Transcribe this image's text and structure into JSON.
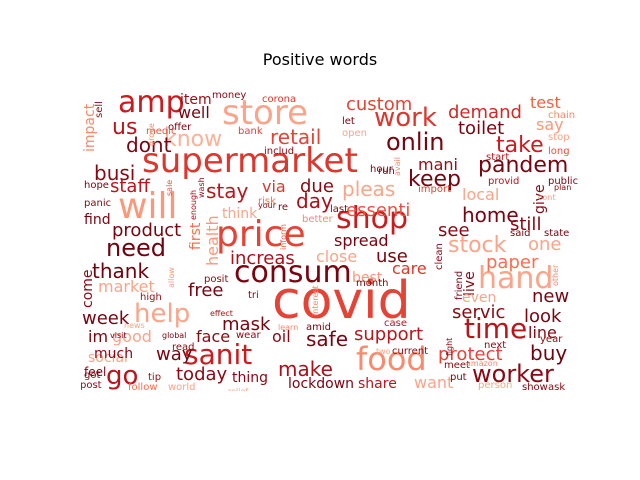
{
  "chart_data": {
    "type": "wordcloud",
    "title": "Positive words",
    "colormap": "Reds",
    "background": "#ffffff",
    "words": [
      {
        "text": "covid",
        "weight": 1.0
      },
      {
        "text": "supermarket",
        "weight": 0.85
      },
      {
        "text": "price",
        "weight": 0.8
      },
      {
        "text": "consum",
        "weight": 0.75
      },
      {
        "text": "store",
        "weight": 0.7
      },
      {
        "text": "shop",
        "weight": 0.68
      },
      {
        "text": "food",
        "weight": 0.66
      },
      {
        "text": "will",
        "weight": 0.62
      },
      {
        "text": "amp",
        "weight": 0.6
      },
      {
        "text": "sanit",
        "weight": 0.55
      },
      {
        "text": "help",
        "weight": 0.55
      },
      {
        "text": "hand",
        "weight": 0.55
      },
      {
        "text": "time",
        "weight": 0.5
      },
      {
        "text": "worker",
        "weight": 0.48
      },
      {
        "text": "work",
        "weight": 0.48
      },
      {
        "text": "onlin",
        "weight": 0.46
      },
      {
        "text": "need",
        "weight": 0.44
      },
      {
        "text": "know",
        "weight": 0.42
      },
      {
        "text": "pandem",
        "weight": 0.42
      },
      {
        "text": "go",
        "weight": 0.42
      },
      {
        "text": "us",
        "weight": 0.4
      },
      {
        "text": "stock",
        "weight": 0.4
      },
      {
        "text": "keep",
        "weight": 0.4
      },
      {
        "text": "take",
        "weight": 0.38
      },
      {
        "text": "home",
        "weight": 0.36
      },
      {
        "text": "day",
        "weight": 0.36
      },
      {
        "text": "buy",
        "weight": 0.36
      },
      {
        "text": "retail",
        "weight": 0.35
      },
      {
        "text": "custom",
        "weight": 0.34
      },
      {
        "text": "demand",
        "weight": 0.34
      },
      {
        "text": "dont",
        "weight": 0.34
      },
      {
        "text": "pleas",
        "weight": 0.34
      },
      {
        "text": "make",
        "weight": 0.34
      },
      {
        "text": "thank",
        "weight": 0.33
      },
      {
        "text": "safe",
        "weight": 0.33
      },
      {
        "text": "new",
        "weight": 0.32
      },
      {
        "text": "use",
        "weight": 0.32
      },
      {
        "text": "stay",
        "weight": 0.32
      },
      {
        "text": "busi",
        "weight": 0.32
      },
      {
        "text": "essenti",
        "weight": 0.32
      },
      {
        "text": "mask",
        "weight": 0.3
      },
      {
        "text": "toilet",
        "weight": 0.3
      },
      {
        "text": "test",
        "weight": 0.3
      },
      {
        "text": "protect",
        "weight": 0.3
      },
      {
        "text": "increas",
        "weight": 0.3
      },
      {
        "text": "paper",
        "weight": 0.3
      },
      {
        "text": "product",
        "weight": 0.3
      },
      {
        "text": "staff",
        "weight": 0.3
      },
      {
        "text": "servic",
        "weight": 0.3
      },
      {
        "text": "look",
        "weight": 0.3
      },
      {
        "text": "support",
        "weight": 0.3
      },
      {
        "text": "way",
        "weight": 0.28
      },
      {
        "text": "today",
        "weight": 0.28
      },
      {
        "text": "see",
        "weight": 0.28
      },
      {
        "text": "still",
        "weight": 0.28
      },
      {
        "text": "one",
        "weight": 0.28
      },
      {
        "text": "health",
        "weight": 0.28
      },
      {
        "text": "close",
        "weight": 0.28
      },
      {
        "text": "free",
        "weight": 0.28
      },
      {
        "text": "spread",
        "weight": 0.26
      },
      {
        "text": "due",
        "weight": 0.26
      },
      {
        "text": "care",
        "weight": 0.26
      },
      {
        "text": "week",
        "weight": 0.26
      },
      {
        "text": "market",
        "weight": 0.26
      },
      {
        "text": "local",
        "weight": 0.26
      },
      {
        "text": "share",
        "weight": 0.26
      },
      {
        "text": "lockdown",
        "weight": 0.24
      },
      {
        "text": "thing",
        "weight": 0.24
      },
      {
        "text": "well",
        "weight": 0.24
      },
      {
        "text": "mani",
        "weight": 0.24
      },
      {
        "text": "want",
        "weight": 0.24
      },
      {
        "text": "im",
        "weight": 0.24
      },
      {
        "text": "good",
        "weight": 0.24
      },
      {
        "text": "item",
        "weight": 0.22
      },
      {
        "text": "impact",
        "weight": 0.22
      },
      {
        "text": "say",
        "weight": 0.22
      },
      {
        "text": "line",
        "weight": 0.22
      },
      {
        "text": "face",
        "weight": 0.22
      },
      {
        "text": "oil",
        "weight": 0.22
      },
      {
        "text": "social",
        "weight": 0.22
      },
      {
        "text": "via",
        "weight": 0.22
      },
      {
        "text": "live",
        "weight": 0.2
      },
      {
        "text": "find",
        "weight": 0.2
      },
      {
        "text": "best",
        "weight": 0.2
      },
      {
        "text": "first",
        "weight": 0.2
      },
      {
        "text": "think",
        "weight": 0.2
      },
      {
        "text": "even",
        "weight": 0.2
      },
      {
        "text": "come",
        "weight": 0.2
      },
      {
        "text": "give",
        "weight": 0.2
      },
      {
        "text": "much",
        "weight": 0.18
      },
      {
        "text": "feel",
        "weight": 0.18
      },
      {
        "text": "corona",
        "weight": 0.18
      },
      {
        "text": "money",
        "weight": 0.16
      },
      {
        "text": "offer",
        "weight": 0.16
      },
      {
        "text": "medic",
        "weight": 0.16
      },
      {
        "text": "bank",
        "weight": 0.16
      },
      {
        "text": "hour",
        "weight": 0.16
      },
      {
        "text": "open",
        "weight": 0.16
      },
      {
        "text": "let",
        "weight": 0.16
      },
      {
        "text": "chain",
        "weight": 0.16
      },
      {
        "text": "long",
        "weight": 0.16
      },
      {
        "text": "stop",
        "weight": 0.16
      },
      {
        "text": "start",
        "weight": 0.16
      },
      {
        "text": "provid",
        "weight": 0.16
      },
      {
        "text": "public",
        "weight": 0.16
      },
      {
        "text": "plan",
        "weight": 0.14
      },
      {
        "text": "hope",
        "weight": 0.16
      },
      {
        "text": "panic",
        "weight": 0.16
      },
      {
        "text": "sale",
        "weight": 0.14
      },
      {
        "text": "wash",
        "weight": 0.14
      },
      {
        "text": "enough",
        "weight": 0.12
      },
      {
        "text": "last",
        "weight": 0.16
      },
      {
        "text": "better",
        "weight": 0.14
      },
      {
        "text": "import",
        "weight": 0.14
      },
      {
        "text": "avail",
        "weight": 0.14
      },
      {
        "text": "run",
        "weight": 0.16
      },
      {
        "text": "risk",
        "weight": 0.14
      },
      {
        "text": "inform",
        "weight": 0.12
      },
      {
        "text": "includ",
        "weight": 0.14
      },
      {
        "text": "high",
        "weight": 0.14
      },
      {
        "text": "posit",
        "weight": 0.14
      },
      {
        "text": "tri",
        "weight": 0.16
      },
      {
        "text": "effect",
        "weight": 0.12
      },
      {
        "text": "allow",
        "weight": 0.12
      },
      {
        "text": "month",
        "weight": 0.14
      },
      {
        "text": "amid",
        "weight": 0.14
      },
      {
        "text": "learn",
        "weight": 0.12
      },
      {
        "text": "wear",
        "weight": 0.12
      },
      {
        "text": "case",
        "weight": 0.12
      },
      {
        "text": "current",
        "weight": 0.14
      },
      {
        "text": "two",
        "weight": 0.12
      },
      {
        "text": "meet",
        "weight": 0.14
      },
      {
        "text": "put",
        "weight": 0.14
      },
      {
        "text": "next",
        "weight": 0.16
      },
      {
        "text": "person",
        "weight": 0.14
      },
      {
        "text": "show",
        "weight": 0.14
      },
      {
        "text": "ask",
        "weight": 0.14
      },
      {
        "text": "year",
        "weight": 0.12
      },
      {
        "text": "said",
        "weight": 0.14
      },
      {
        "text": "state",
        "weight": 0.14
      },
      {
        "text": "other",
        "weight": 0.12
      },
      {
        "text": "friend",
        "weight": 0.14
      },
      {
        "text": "fight",
        "weight": 0.12
      },
      {
        "text": "clean",
        "weight": 0.12
      },
      {
        "text": "interest",
        "weight": 0.1
      },
      {
        "text": "global",
        "weight": 0.12
      },
      {
        "text": "visit",
        "weight": 0.12
      },
      {
        "text": "read",
        "weight": 0.12
      },
      {
        "text": "tip",
        "weight": 0.12
      },
      {
        "text": "got",
        "weight": 0.14
      },
      {
        "text": "post",
        "weight": 0.14
      },
      {
        "text": "follow",
        "weight": 0.14
      },
      {
        "text": "world",
        "weight": 0.14
      },
      {
        "text": "relief",
        "weight": 0.1
      },
      {
        "text": "news",
        "weight": 0.12
      },
      {
        "text": "sell",
        "weight": 0.14
      },
      {
        "text": "your",
        "weight": 0.12
      },
      {
        "text": "grove",
        "weight": 0.1
      },
      {
        "text": "re",
        "weight": 0.12
      },
      {
        "text": "cont",
        "weight": 0.1
      },
      {
        "text": "amazon",
        "weight": 0.1
      }
    ]
  }
}
